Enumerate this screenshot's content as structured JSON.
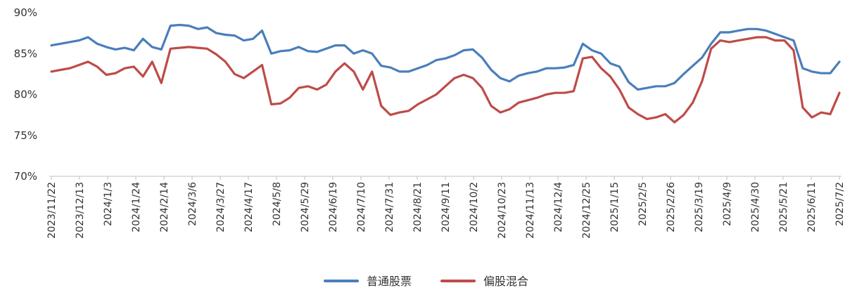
{
  "chart_data": {
    "type": "line",
    "title": "",
    "xlabel": "",
    "ylabel": "",
    "ylim": [
      70,
      90
    ],
    "y_ticks": [
      "70%",
      "75%",
      "80%",
      "85%",
      "90%"
    ],
    "y_tick_values": [
      70,
      75,
      80,
      85,
      90
    ],
    "x_tick_labels": [
      "2023/11/22",
      "2023/12/13",
      "2024/1/3",
      "2024/1/24",
      "2024/2/14",
      "2024/3/6",
      "2024/3/27",
      "2024/4/17",
      "2024/5/8",
      "2024/5/29",
      "2024/6/19",
      "2024/7/10",
      "2024/7/31",
      "2024/8/21",
      "2024/9/11",
      "2024/10/2",
      "2024/10/23",
      "2024/11/13",
      "2024/12/4",
      "2024/12/25",
      "2025/1/15",
      "2025/2/5",
      "2025/2/26",
      "2025/3/19",
      "2025/4/9",
      "2025/4/30",
      "2025/5/21",
      "2025/6/11",
      "2025/7/2"
    ],
    "grid": false,
    "legend_position": "bottom",
    "series": [
      {
        "name": "普通股票",
        "color": "#4a7ebb",
        "values": [
          86.0,
          86.2,
          86.4,
          86.6,
          87.0,
          86.2,
          85.8,
          85.5,
          85.7,
          85.4,
          86.8,
          85.8,
          85.5,
          88.4,
          88.5,
          88.4,
          88.0,
          88.2,
          87.5,
          87.3,
          87.2,
          86.6,
          86.8,
          87.8,
          85.0,
          85.3,
          85.4,
          85.8,
          85.3,
          85.2,
          85.6,
          86.0,
          86.0,
          85.0,
          85.4,
          85.0,
          83.5,
          83.3,
          82.8,
          82.8,
          83.2,
          83.6,
          84.2,
          84.4,
          84.8,
          85.4,
          85.5,
          84.5,
          83.0,
          82.0,
          81.6,
          82.3,
          82.6,
          82.8,
          83.2,
          83.2,
          83.3,
          83.6,
          86.2,
          85.4,
          85.0,
          83.8,
          83.4,
          81.5,
          80.6,
          80.8,
          81.0,
          81.0,
          81.4,
          82.5,
          83.5,
          84.5,
          86.2,
          87.6,
          87.6,
          87.8,
          88.0,
          88.0,
          87.8,
          87.4,
          87.0,
          86.6,
          83.2,
          82.8,
          82.6,
          82.6,
          84.0
        ]
      },
      {
        "name": "偏股混合",
        "color": "#be4b48",
        "values": [
          82.8,
          83.0,
          83.2,
          83.6,
          84.0,
          83.4,
          82.4,
          82.6,
          83.2,
          83.4,
          82.2,
          84.0,
          81.4,
          85.6,
          85.7,
          85.8,
          85.7,
          85.6,
          84.9,
          84.0,
          82.5,
          82.0,
          82.8,
          83.6,
          78.8,
          78.9,
          79.6,
          80.8,
          81.0,
          80.6,
          81.2,
          82.8,
          83.8,
          82.8,
          80.6,
          82.8,
          78.6,
          77.5,
          77.8,
          78.0,
          78.8,
          79.4,
          80.0,
          81.0,
          82.0,
          82.4,
          82.0,
          80.8,
          78.6,
          77.8,
          78.2,
          79.0,
          79.3,
          79.6,
          80.0,
          80.2,
          80.2,
          80.4,
          84.4,
          84.6,
          83.2,
          82.2,
          80.6,
          78.4,
          77.6,
          77.0,
          77.2,
          77.6,
          76.6,
          77.5,
          79.0,
          81.6,
          85.6,
          86.6,
          86.4,
          86.6,
          86.8,
          87.0,
          87.0,
          86.6,
          86.6,
          85.4,
          78.4,
          77.2,
          77.8,
          77.6,
          80.2
        ]
      }
    ]
  }
}
